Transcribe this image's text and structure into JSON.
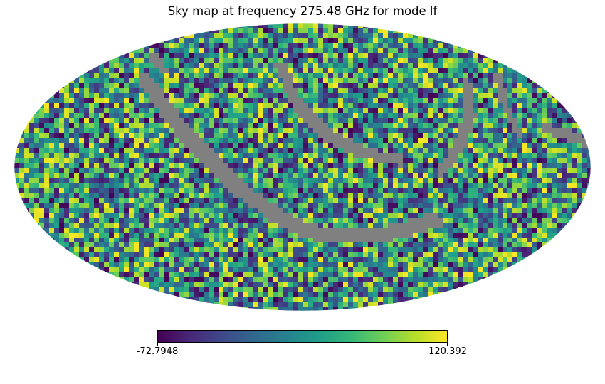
{
  "chart_data": {
    "type": "heatmap",
    "projection": "mollweide",
    "title": "Sky map at frequency 275.48 GHz for mode lf",
    "colormap": "viridis",
    "colorbar": {
      "min_label": "-72.7948",
      "max_label": "120.392",
      "min": -72.7948,
      "max": 120.392,
      "orientation": "horizontal",
      "placement": "bottom"
    },
    "masked_color": "#808080",
    "background": "#ffffff"
  }
}
